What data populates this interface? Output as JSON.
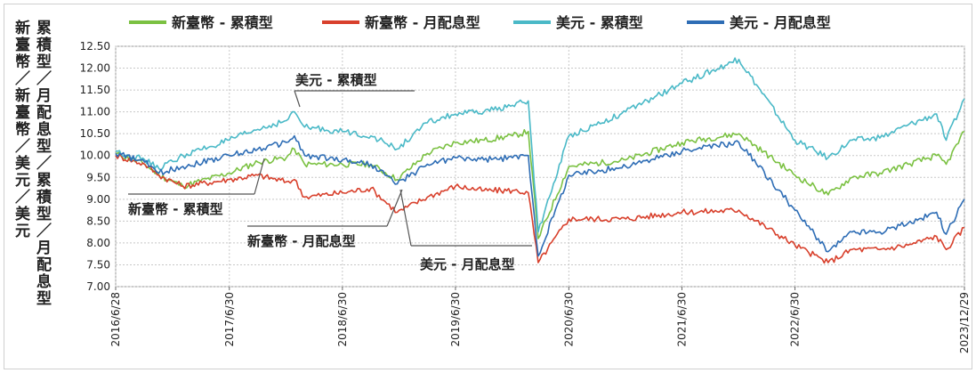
{
  "chart_data": {
    "type": "line",
    "ylabel_columns": [
      "新臺幣／新臺幣／美元／美元",
      "累積型／月配息型／累積型／月配息型"
    ],
    "ylim": [
      7.0,
      12.5
    ],
    "yticks": [
      "7.00",
      "7.50",
      "8.00",
      "8.50",
      "9.00",
      "9.50",
      "10.00",
      "10.50",
      "11.00",
      "11.50",
      "12.00",
      "12.50"
    ],
    "xticks": [
      "2016/6/28",
      "2017/6/30",
      "2018/6/30",
      "2019/6/30",
      "2020/6/30",
      "2021/6/30",
      "2022/6/30",
      "2023/12/29"
    ],
    "grid": true,
    "legend_position": "top",
    "series": [
      {
        "name": "新臺幣 - 累積型",
        "color": "#7bc142",
        "x": [
          "2016/6/28",
          "2016/9/30",
          "2016/11/15",
          "2017/1/31",
          "2017/6/30",
          "2017/9/30",
          "2017/12/31",
          "2018/1/26",
          "2018/2/28",
          "2018/6/30",
          "2018/9/30",
          "2018/12/24",
          "2019/3/31",
          "2019/6/30",
          "2019/9/30",
          "2019/12/31",
          "2020/2/20",
          "2020/3/23",
          "2020/6/30",
          "2020/12/31",
          "2021/6/30",
          "2021/12/31",
          "2022/6/30",
          "2022/10/15",
          "2022/12/31",
          "2023/3/31",
          "2023/6/30",
          "2023/9/30",
          "2023/10/31",
          "2023/12/29"
        ],
        "y": [
          10.05,
          9.8,
          9.55,
          9.3,
          9.6,
          9.85,
          9.95,
          10.15,
          9.8,
          9.8,
          9.8,
          9.45,
          10.05,
          10.3,
          10.35,
          10.45,
          10.55,
          8.1,
          9.75,
          9.9,
          10.3,
          10.5,
          9.55,
          9.1,
          9.5,
          9.6,
          9.8,
          10.0,
          9.8,
          10.55
        ]
      },
      {
        "name": "新臺幣 - 月配息型",
        "color": "#d8402c",
        "x": [
          "2016/6/28",
          "2016/9/30",
          "2016/11/15",
          "2017/1/31",
          "2017/6/30",
          "2017/9/30",
          "2017/12/31",
          "2018/1/26",
          "2018/2/28",
          "2018/6/30",
          "2018/9/30",
          "2018/12/24",
          "2019/3/31",
          "2019/6/30",
          "2019/9/30",
          "2019/12/31",
          "2020/2/20",
          "2020/3/23",
          "2020/6/30",
          "2020/12/31",
          "2021/6/30",
          "2021/12/31",
          "2022/6/30",
          "2022/10/15",
          "2022/12/31",
          "2023/3/31",
          "2023/6/30",
          "2023/9/30",
          "2023/10/31",
          "2023/12/29"
        ],
        "y": [
          10.0,
          9.8,
          9.55,
          9.3,
          9.45,
          9.55,
          9.4,
          9.45,
          9.05,
          9.15,
          9.25,
          8.7,
          9.05,
          9.3,
          9.2,
          9.2,
          9.15,
          7.55,
          8.55,
          8.55,
          8.7,
          8.75,
          7.95,
          7.55,
          7.85,
          7.85,
          7.95,
          8.15,
          7.85,
          8.35
        ]
      },
      {
        "name": "美元 - 累積型",
        "color": "#4ab9c7",
        "x": [
          "2016/6/28",
          "2016/9/30",
          "2016/11/15",
          "2017/1/31",
          "2017/6/30",
          "2017/9/30",
          "2017/12/31",
          "2018/1/26",
          "2018/2/28",
          "2018/6/30",
          "2018/9/30",
          "2018/12/24",
          "2019/3/31",
          "2019/6/30",
          "2019/9/30",
          "2019/12/31",
          "2020/2/20",
          "2020/3/23",
          "2020/6/30",
          "2020/12/31",
          "2021/6/30",
          "2021/12/31",
          "2022/6/30",
          "2022/10/15",
          "2022/12/31",
          "2023/3/31",
          "2023/6/30",
          "2023/9/30",
          "2023/10/31",
          "2023/12/29"
        ],
        "y": [
          10.1,
          9.9,
          9.7,
          10.0,
          10.35,
          10.6,
          10.8,
          11.0,
          10.65,
          10.55,
          10.45,
          10.15,
          10.75,
          10.95,
          11.0,
          11.15,
          11.25,
          8.25,
          10.45,
          11.0,
          11.65,
          12.2,
          10.35,
          9.95,
          10.35,
          10.4,
          10.7,
          10.95,
          10.35,
          11.3
        ]
      },
      {
        "name": "美元 - 月配息型",
        "color": "#2e6db5",
        "x": [
          "2016/6/28",
          "2016/9/30",
          "2016/11/15",
          "2017/1/31",
          "2017/6/30",
          "2017/9/30",
          "2017/12/31",
          "2018/1/26",
          "2018/2/28",
          "2018/6/30",
          "2018/9/30",
          "2018/12/24",
          "2019/3/31",
          "2019/6/30",
          "2019/9/30",
          "2019/12/31",
          "2020/2/20",
          "2020/3/23",
          "2020/6/30",
          "2020/12/31",
          "2021/6/30",
          "2021/12/31",
          "2022/6/30",
          "2022/10/15",
          "2022/12/31",
          "2023/3/31",
          "2023/6/30",
          "2023/9/30",
          "2023/10/31",
          "2023/12/29"
        ],
        "y": [
          10.05,
          9.85,
          9.6,
          9.75,
          10.0,
          10.15,
          10.3,
          10.45,
          10.0,
          9.9,
          9.8,
          9.35,
          9.8,
          9.95,
          9.9,
          9.95,
          10.0,
          7.7,
          9.55,
          9.75,
          10.1,
          10.3,
          8.75,
          7.8,
          8.25,
          8.25,
          8.45,
          8.7,
          8.2,
          9.0
        ]
      }
    ],
    "annotations": [
      "美元 - 累積型",
      "新臺幣 - 累積型",
      "新臺幣 - 月配息型",
      "美元 - 月配息型"
    ]
  }
}
